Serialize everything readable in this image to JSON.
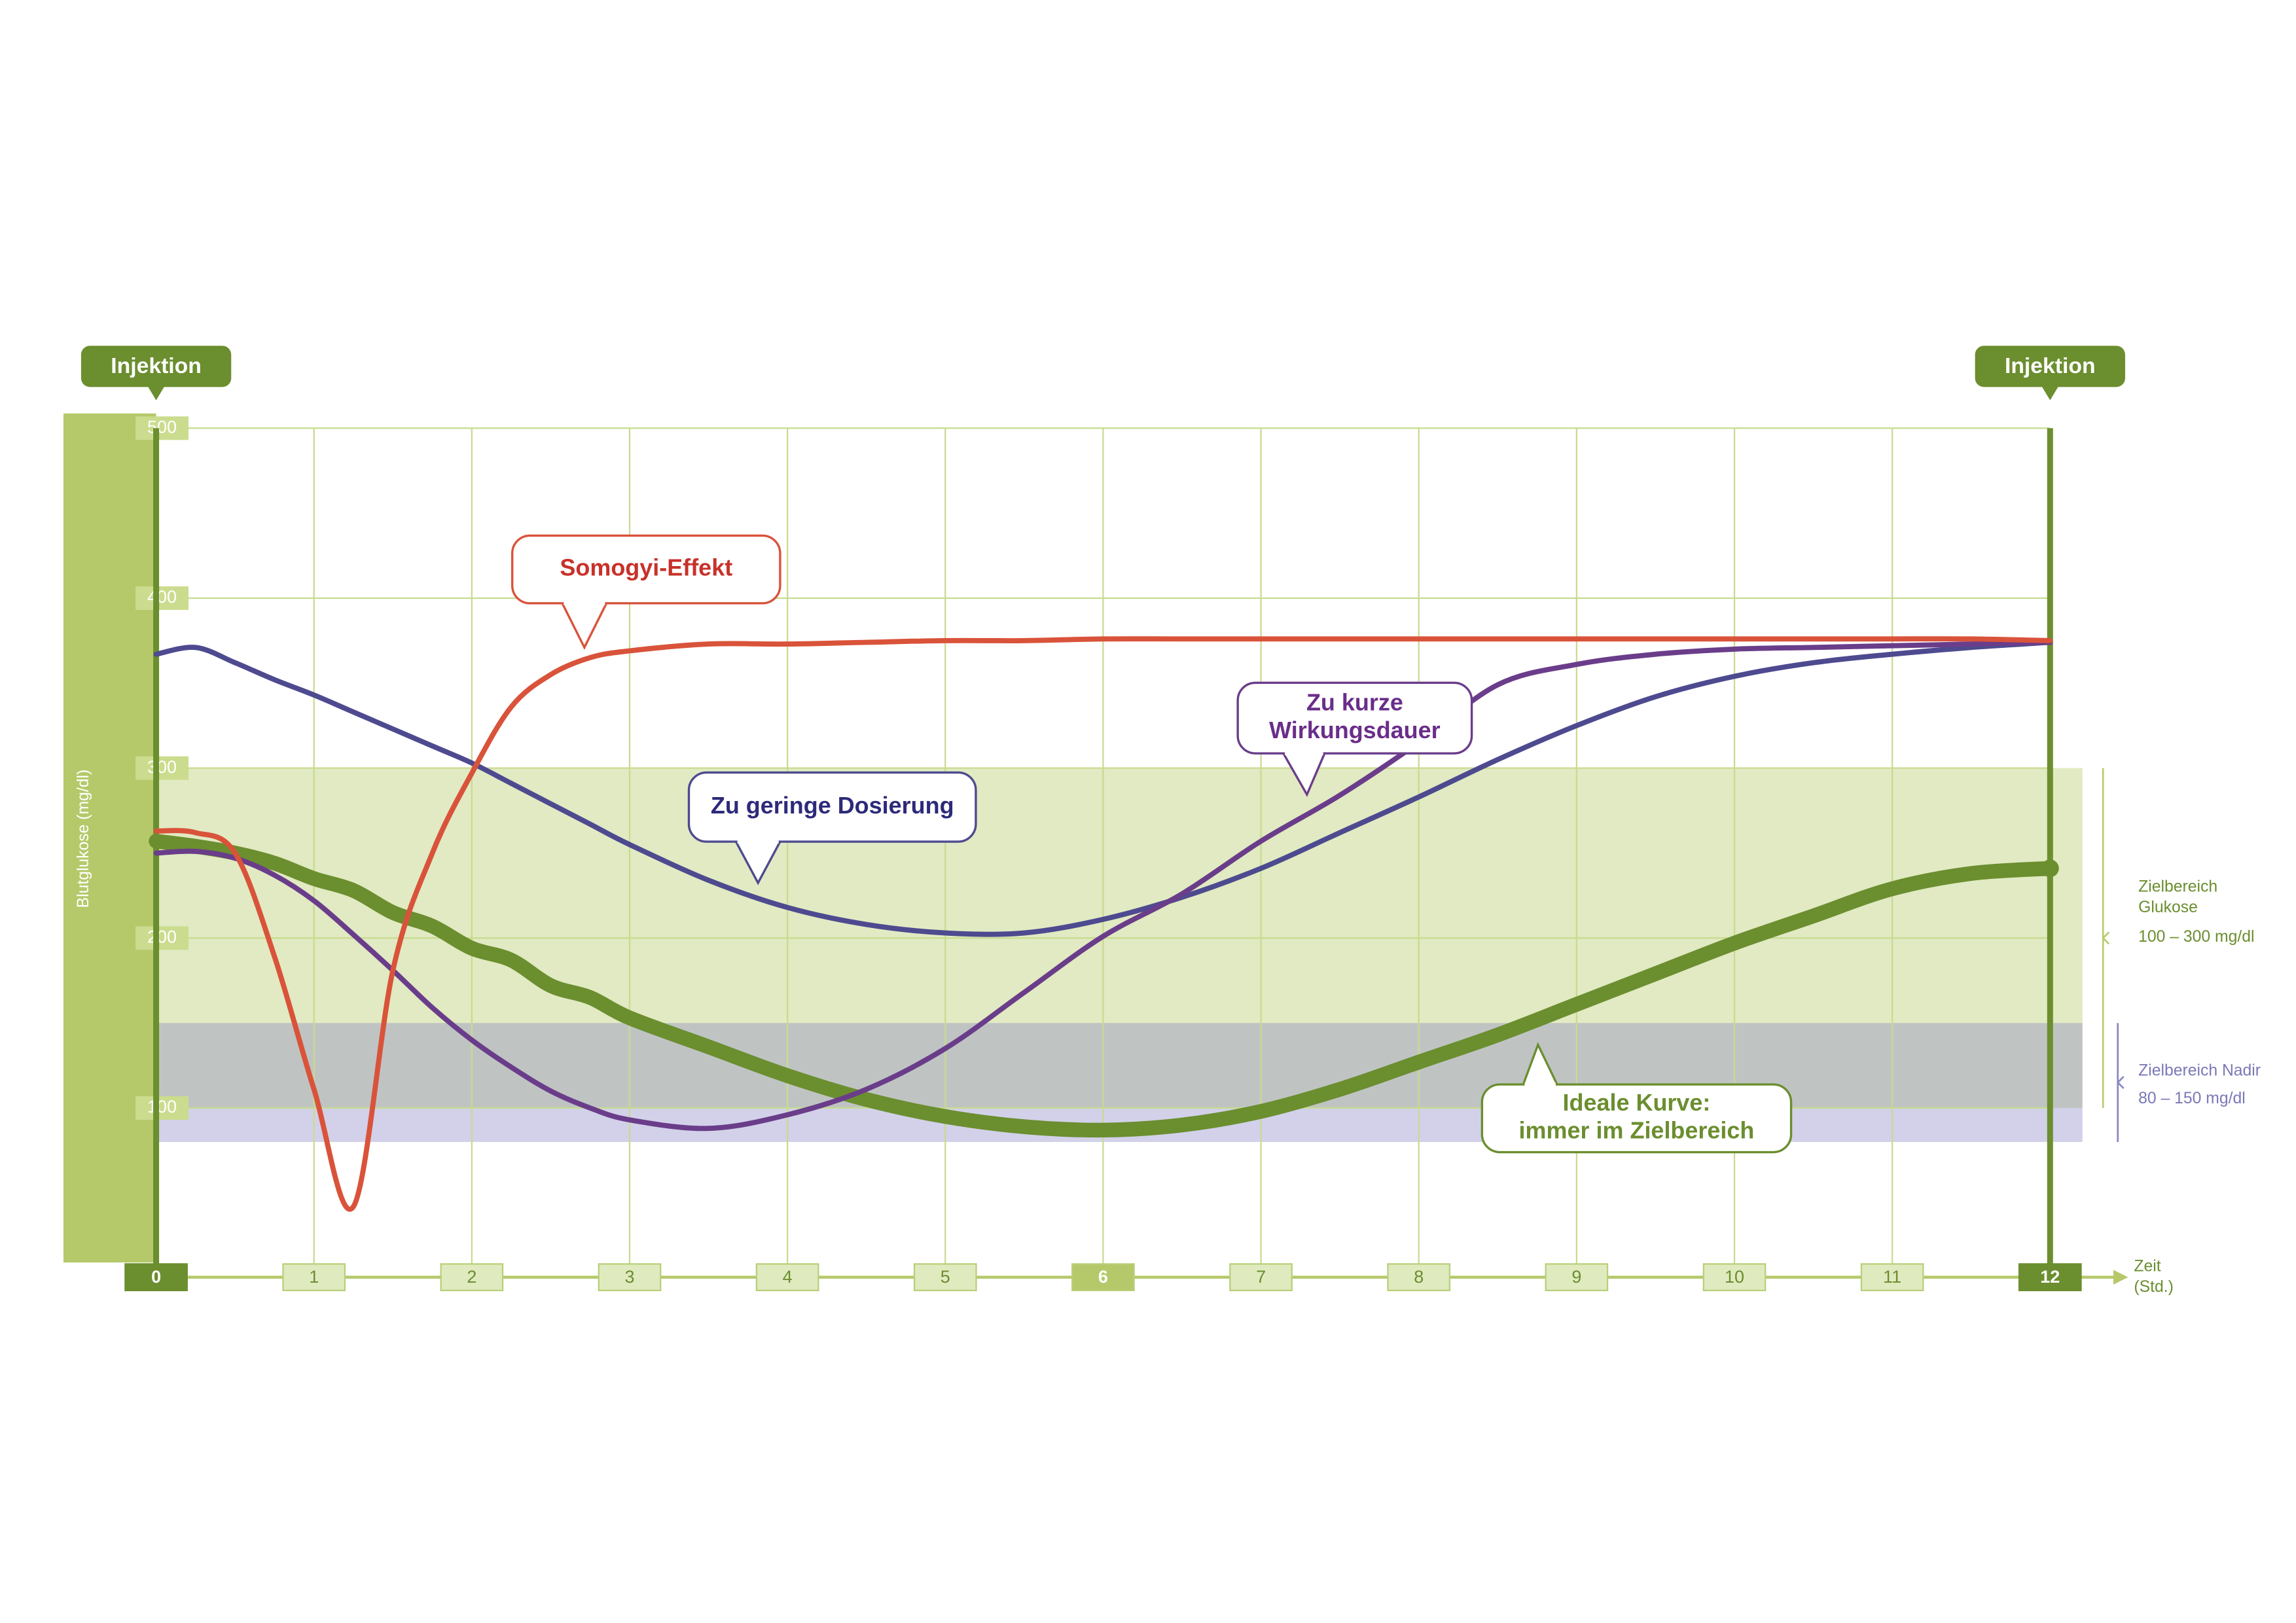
{
  "chart_data": {
    "type": "line",
    "y_label": "Blutglukose (mg/dl)",
    "x_label": [
      "Zeit",
      "(Std.)"
    ],
    "x": [
      0,
      0.25,
      0.5,
      0.75,
      1,
      1.25,
      1.5,
      1.75,
      2,
      2.25,
      2.5,
      2.75,
      3,
      3.5,
      4,
      4.5,
      5,
      5.5,
      6,
      6.5,
      7,
      7.5,
      8,
      8.5,
      9,
      9.5,
      10,
      10.5,
      11,
      11.5,
      12
    ],
    "xlim": [
      0,
      12
    ],
    "ylim": [
      0,
      500
    ],
    "xticks": [
      0,
      1,
      2,
      3,
      4,
      5,
      6,
      7,
      8,
      9,
      10,
      11,
      12
    ],
    "yticks": [
      100,
      200,
      300,
      400,
      500
    ],
    "grid": true,
    "markers": [
      {
        "x": 0,
        "label": "Injektion"
      },
      {
        "x": 12,
        "label": "Injektion"
      }
    ],
    "bands": [
      {
        "from": 100,
        "to": 300,
        "color": "#b7cd6e",
        "label": [
          "Zielbereich",
          "Glukose"
        ],
        "range_label": "100 – 300 mg/dl"
      },
      {
        "from": 80,
        "to": 150,
        "color": "#8a86c4",
        "label": [
          "Zielbereich Nadir"
        ],
        "range_label": "80 – 150 mg/dl"
      }
    ],
    "series": [
      {
        "label": [
          "Ideale Kurve:",
          "immer im Zielbereich"
        ],
        "color": "#6b8e2f",
        "values": [
          257,
          254,
          250,
          244,
          235,
          228,
          215,
          207,
          194,
          187,
          172,
          165,
          153,
          136,
          119,
          105,
          95,
          89,
          87,
          90,
          98,
          111,
          127,
          143,
          161,
          179,
          197,
          213,
          229,
          238,
          241
        ]
      },
      {
        "label": [
          "Zu geringe Dosierung"
        ],
        "color": "#4e4a8f",
        "values": [
          367,
          371,
          362,
          352,
          343,
          333,
          323,
          313,
          303,
          291,
          279,
          267,
          255,
          234,
          218,
          208,
          203,
          203,
          211,
          224,
          241,
          262,
          283,
          305,
          325,
          342,
          354,
          362,
          367,
          371,
          374
        ]
      },
      {
        "label": [
          "Zu kurze",
          "Wirkungsdauer"
        ],
        "color": "#6a3d8a",
        "values": [
          250,
          251,
          247,
          237,
          222,
          202,
          181,
          159,
          140,
          124,
          110,
          100,
          93,
          88,
          96,
          111,
          135,
          168,
          201,
          226,
          257,
          284,
          315,
          349,
          361,
          367,
          370,
          371,
          372,
          373,
          374
        ]
      },
      {
        "label": [
          "Somogyi-Effekt"
        ],
        "color": "#d9533a",
        "values": [
          263,
          262,
          250,
          189,
          111,
          42,
          181,
          250,
          297,
          336,
          355,
          365,
          369,
          373,
          373,
          374,
          375,
          375,
          376,
          376,
          376,
          376,
          376,
          376,
          376,
          376,
          376,
          376,
          376,
          376,
          375
        ]
      }
    ]
  }
}
